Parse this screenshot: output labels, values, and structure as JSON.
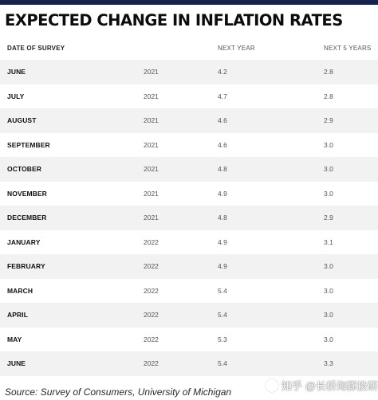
{
  "title": "EXPECTED CHANGE IN INFLATION RATES",
  "chart_data": {
    "type": "table",
    "title": "EXPECTED CHANGE IN INFLATION RATES",
    "columns": [
      "DATE OF SURVEY",
      "",
      "NEXT YEAR",
      "NEXT 5 YEARS"
    ],
    "rows": [
      {
        "month": "JUNE",
        "year": "2021",
        "next_year": "4.2",
        "next_5_years": "2.8"
      },
      {
        "month": "JULY",
        "year": "2021",
        "next_year": "4.7",
        "next_5_years": "2.8"
      },
      {
        "month": "AUGUST",
        "year": "2021",
        "next_year": "4.6",
        "next_5_years": "2.9"
      },
      {
        "month": "SEPTEMBER",
        "year": "2021",
        "next_year": "4.6",
        "next_5_years": "3.0"
      },
      {
        "month": "OCTOBER",
        "year": "2021",
        "next_year": "4.8",
        "next_5_years": "3.0"
      },
      {
        "month": "NOVEMBER",
        "year": "2021",
        "next_year": "4.9",
        "next_5_years": "3.0"
      },
      {
        "month": "DECEMBER",
        "year": "2021",
        "next_year": "4.8",
        "next_5_years": "2.9"
      },
      {
        "month": "JANUARY",
        "year": "2022",
        "next_year": "4.9",
        "next_5_years": "3.1"
      },
      {
        "month": "FEBRUARY",
        "year": "2022",
        "next_year": "4.9",
        "next_5_years": "3.0"
      },
      {
        "month": "MARCH",
        "year": "2022",
        "next_year": "5.4",
        "next_5_years": "3.0"
      },
      {
        "month": "APRIL",
        "year": "2022",
        "next_year": "5.4",
        "next_5_years": "3.0"
      },
      {
        "month": "MAY",
        "year": "2022",
        "next_year": "5.3",
        "next_5_years": "3.0"
      },
      {
        "month": "JUNE",
        "year": "2022",
        "next_year": "5.4",
        "next_5_years": "3.3"
      }
    ],
    "source": "Source: Survey of Consumers, University of Michigan"
  },
  "watermark": "知乎 @长桥海豚投研",
  "colors": {
    "top_rule": "#16234a",
    "row_shade": "#f2f2f2"
  }
}
